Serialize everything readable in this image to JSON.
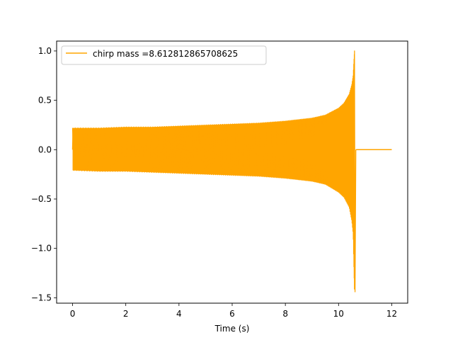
{
  "chart_data": {
    "type": "line",
    "title": "",
    "xlabel": "Time (s)",
    "ylabel": "",
    "xlim": [
      -0.6,
      12.6
    ],
    "ylim": [
      -1.555,
      1.1
    ],
    "xticks": [
      0,
      2,
      4,
      6,
      8,
      10,
      12
    ],
    "xtick_labels": [
      "0",
      "2",
      "4",
      "6",
      "8",
      "10",
      "12"
    ],
    "yticks": [
      1.0,
      0.5,
      0.0,
      -0.5,
      -1.0,
      -1.5
    ],
    "ytick_labels": [
      "1.0",
      "0.5",
      "0.0",
      "−0.5",
      "−1.0",
      "−1.5"
    ],
    "grid": false,
    "legend_position": "top-left",
    "series": [
      {
        "name": "chirp mass =8.612812865708625",
        "color": "#ffa500",
        "oscillating_envelope": {
          "t": [
            0.0,
            1.0,
            2.0,
            3.0,
            4.0,
            5.0,
            6.0,
            7.0,
            8.0,
            9.0,
            9.5,
            10.0,
            10.2,
            10.4,
            10.5,
            10.55,
            10.6
          ],
          "upper": [
            0.22,
            0.22,
            0.23,
            0.23,
            0.24,
            0.25,
            0.26,
            0.27,
            0.29,
            0.32,
            0.35,
            0.42,
            0.47,
            0.56,
            0.66,
            0.75,
            1.0
          ],
          "lower": [
            -0.21,
            -0.22,
            -0.22,
            -0.23,
            -0.24,
            -0.25,
            -0.26,
            -0.27,
            -0.29,
            -0.32,
            -0.35,
            -0.43,
            -0.48,
            -0.58,
            -0.72,
            -0.85,
            -1.44
          ]
        },
        "after_merger": {
          "t": [
            10.65,
            12.0
          ],
          "y": [
            0.0,
            0.0
          ]
        }
      }
    ]
  }
}
